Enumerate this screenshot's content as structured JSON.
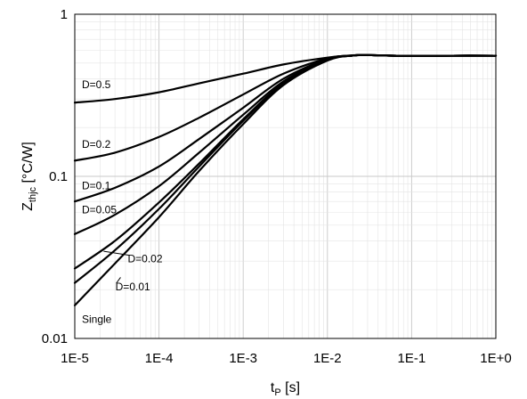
{
  "chart_data": {
    "type": "line",
    "x_scale": "log",
    "y_scale": "log",
    "xlim": [
      1e-05,
      1
    ],
    "ylim": [
      0.01,
      1
    ],
    "grid": true,
    "xlabel": {
      "main": "t",
      "sub": "P",
      "unit": " [s]"
    },
    "ylabel": {
      "main": "Z",
      "sub": "thjc",
      "unit": " [°C/W]"
    },
    "x_tick_labels": [
      "1E-5",
      "1E-4",
      "1E-3",
      "1E-2",
      "1E-1",
      "1E+0"
    ],
    "y_tick_labels": [
      "0.01",
      "0.1",
      "1"
    ],
    "series": [
      {
        "name": "D=0.5",
        "points": [
          [
            1e-05,
            0.285
          ],
          [
            3e-05,
            0.3
          ],
          [
            0.0001,
            0.33
          ],
          [
            0.0003,
            0.375
          ],
          [
            0.001,
            0.43
          ],
          [
            0.003,
            0.49
          ],
          [
            0.01,
            0.54
          ],
          [
            0.02,
            0.558
          ],
          [
            0.03,
            0.56
          ],
          [
            0.05,
            0.556
          ],
          [
            0.1,
            0.553
          ],
          [
            0.3,
            0.555
          ],
          [
            1,
            0.555
          ]
        ]
      },
      {
        "name": "D=0.2",
        "points": [
          [
            1e-05,
            0.125
          ],
          [
            3e-05,
            0.14
          ],
          [
            0.0001,
            0.175
          ],
          [
            0.0003,
            0.23
          ],
          [
            0.001,
            0.32
          ],
          [
            0.003,
            0.43
          ],
          [
            0.01,
            0.535
          ],
          [
            0.02,
            0.556
          ],
          [
            0.03,
            0.56
          ],
          [
            0.05,
            0.556
          ],
          [
            0.1,
            0.553
          ],
          [
            0.3,
            0.555
          ],
          [
            1,
            0.555
          ]
        ]
      },
      {
        "name": "D=0.1",
        "points": [
          [
            1e-05,
            0.07
          ],
          [
            3e-05,
            0.085
          ],
          [
            0.0001,
            0.115
          ],
          [
            0.0003,
            0.17
          ],
          [
            0.001,
            0.265
          ],
          [
            0.003,
            0.4
          ],
          [
            0.01,
            0.53
          ],
          [
            0.02,
            0.556
          ],
          [
            0.03,
            0.56
          ],
          [
            0.05,
            0.556
          ],
          [
            0.1,
            0.553
          ],
          [
            0.3,
            0.555
          ],
          [
            1,
            0.555
          ]
        ]
      },
      {
        "name": "D=0.05",
        "points": [
          [
            1e-05,
            0.044
          ],
          [
            3e-05,
            0.058
          ],
          [
            0.0001,
            0.087
          ],
          [
            0.0003,
            0.14
          ],
          [
            0.001,
            0.24
          ],
          [
            0.003,
            0.385
          ],
          [
            0.01,
            0.525
          ],
          [
            0.02,
            0.556
          ],
          [
            0.03,
            0.56
          ],
          [
            0.05,
            0.556
          ],
          [
            0.1,
            0.553
          ],
          [
            0.3,
            0.555
          ],
          [
            1,
            0.555
          ]
        ]
      },
      {
        "name": "D=0.02",
        "points": [
          [
            1e-05,
            0.027
          ],
          [
            3e-05,
            0.04
          ],
          [
            0.0001,
            0.069
          ],
          [
            0.0003,
            0.12
          ],
          [
            0.001,
            0.225
          ],
          [
            0.003,
            0.375
          ],
          [
            0.01,
            0.522
          ],
          [
            0.02,
            0.556
          ],
          [
            0.03,
            0.56
          ],
          [
            0.05,
            0.556
          ],
          [
            0.1,
            0.553
          ],
          [
            0.3,
            0.555
          ],
          [
            1,
            0.555
          ]
        ]
      },
      {
        "name": "D=0.01",
        "points": [
          [
            1e-05,
            0.022
          ],
          [
            3e-05,
            0.035
          ],
          [
            0.0001,
            0.063
          ],
          [
            0.0003,
            0.115
          ],
          [
            0.001,
            0.22
          ],
          [
            0.003,
            0.37
          ],
          [
            0.01,
            0.52
          ],
          [
            0.02,
            0.556
          ],
          [
            0.03,
            0.56
          ],
          [
            0.05,
            0.556
          ],
          [
            0.1,
            0.553
          ],
          [
            0.3,
            0.555
          ],
          [
            1,
            0.555
          ]
        ]
      },
      {
        "name": "Single",
        "points": [
          [
            1e-05,
            0.016
          ],
          [
            3e-05,
            0.029
          ],
          [
            0.0001,
            0.056
          ],
          [
            0.0003,
            0.108
          ],
          [
            0.001,
            0.21
          ],
          [
            0.003,
            0.365
          ],
          [
            0.01,
            0.518
          ],
          [
            0.02,
            0.556
          ],
          [
            0.03,
            0.56
          ],
          [
            0.05,
            0.556
          ],
          [
            0.1,
            0.553
          ],
          [
            0.3,
            0.555
          ],
          [
            1,
            0.555
          ]
        ]
      }
    ],
    "annotations": [
      {
        "text": "D=0.5",
        "anchor_x": 1e-05,
        "anchor_y": 0.35
      },
      {
        "text": "D=0.2",
        "anchor_x": 1e-05,
        "anchor_y": 0.15
      },
      {
        "text": "D=0.1",
        "anchor_x": 1e-05,
        "anchor_y": 0.083
      },
      {
        "text": "D=0.05",
        "anchor_x": 1e-05,
        "anchor_y": 0.059
      },
      {
        "text": "D=0.02",
        "anchor_x": 3.5e-05,
        "anchor_y": 0.0295,
        "leader_to": [
          2.2e-05,
          0.0345
        ]
      },
      {
        "text": "D=0.01",
        "anchor_x": 2.5e-05,
        "anchor_y": 0.0198,
        "leader_to": [
          3.5e-05,
          0.0238
        ]
      },
      {
        "text": "Single",
        "anchor_x": 1e-05,
        "anchor_y": 0.0125
      }
    ]
  }
}
